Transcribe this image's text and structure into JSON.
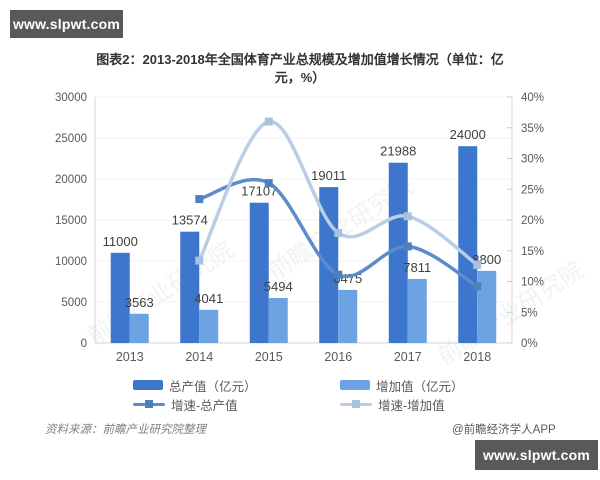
{
  "watermarks": {
    "top": "www.slpwt.com",
    "bottom": "www.slpwt.com"
  },
  "title": {
    "line1": "图表2：2013-2018年全国体育产业总规模及增加值增长情况（单位：亿",
    "line2": "元，%）",
    "full": "图表2：2013-2018年全国体育产业总规模及增加值增长情况（单位：亿元，%）"
  },
  "footer": {
    "source": "资料来源：前瞻产业研究院整理",
    "credit": "@前瞻经济学人APP"
  },
  "chart_data": {
    "type": "bar",
    "subtype": "bar-line-combo",
    "categories": [
      "2013",
      "2014",
      "2015",
      "2016",
      "2017",
      "2018"
    ],
    "series": [
      {
        "name": "总产值（亿元）",
        "type": "bar",
        "axis": "left",
        "color": "#3c77cd",
        "values": [
          11000,
          13574,
          17107,
          19011,
          21988,
          24000
        ]
      },
      {
        "name": "增加值（亿元）",
        "type": "bar",
        "axis": "left",
        "color": "#6da3e3",
        "values": [
          3563,
          4041,
          5494,
          6475,
          7811,
          8800
        ]
      },
      {
        "name": "增速-总产值",
        "type": "line",
        "axis": "right",
        "color": "#5e8bc9",
        "marker_color": "#4e80c0",
        "values": [
          null,
          23.4,
          26.0,
          11.1,
          15.7,
          9.2
        ]
      },
      {
        "name": "增速-增加值",
        "type": "line",
        "axis": "right",
        "color": "#b9cde5",
        "marker_color": "#a8c2de",
        "values": [
          null,
          13.4,
          36.0,
          17.9,
          20.6,
          12.7
        ]
      }
    ],
    "left_axis": {
      "min": 0,
      "max": 30000,
      "step": 5000,
      "ticks": [
        "0",
        "5000",
        "10000",
        "15000",
        "20000",
        "25000",
        "30000"
      ]
    },
    "right_axis": {
      "min": 0,
      "max": 40,
      "step": 5,
      "ticks": [
        "0%",
        "5%",
        "10%",
        "15%",
        "20%",
        "25%",
        "30%",
        "35%",
        "40%"
      ]
    },
    "legend_position": "bottom",
    "grid": true,
    "watermark_text": "前瞻产业研究院"
  }
}
